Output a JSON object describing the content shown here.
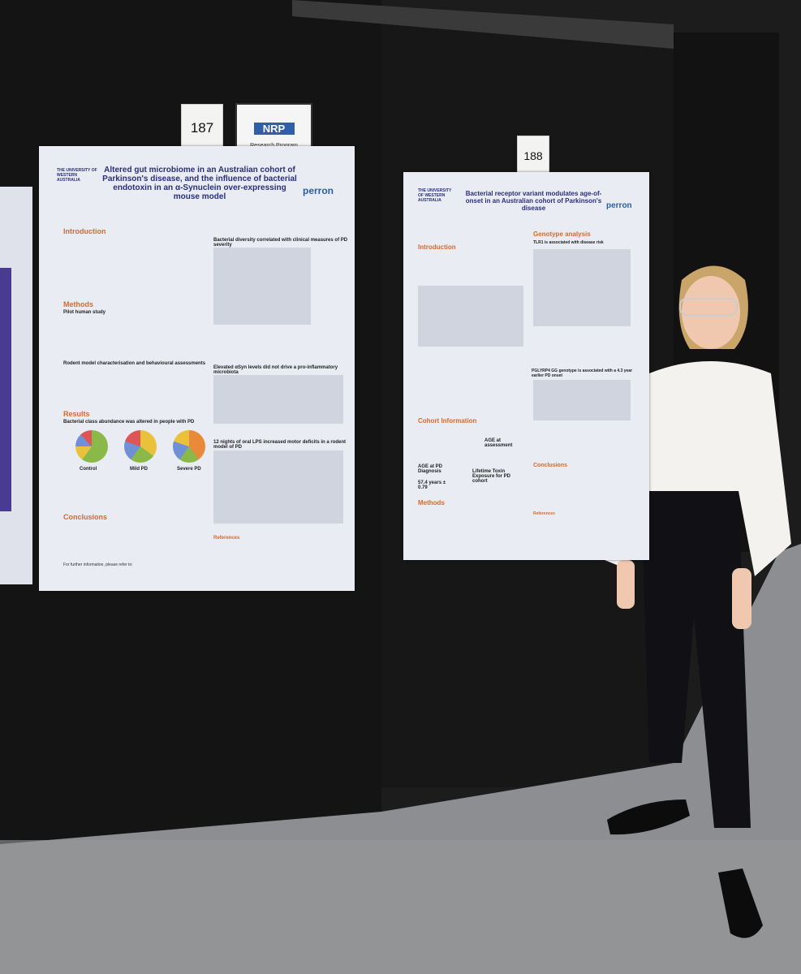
{
  "signs": [
    "187",
    "188"
  ],
  "nrp_card": {
    "logo": "NRP",
    "caption": "Research Program"
  },
  "posters": [
    {
      "university": "THE UNIVERSITY OF WESTERN AUSTRALIA",
      "brand": "perron",
      "title": "Altered gut microbiome in an Australian cohort of Parkinson's disease, and the influence of bacterial endotoxin in an α-Synuclein over-expressing mouse model",
      "left_headings": [
        "Introduction",
        "Methods",
        "Pilot human study",
        "Rodent model characterisation and behavioural assessments",
        "Results",
        "Bacterial class abundance was altered in people with PD"
      ],
      "pie_labels": [
        "Control",
        "Mild PD",
        "Severe PD"
      ],
      "right_headings": [
        "Bacterial diversity correlated with clinical measures of PD severity",
        "Elevated αSyn levels did not drive a pro-inflammatory microbiota",
        "12 nights of oral LPS increased motor deficits in a rodent model of PD"
      ],
      "bottom_headings": [
        "Conclusions",
        "References"
      ],
      "footer": "For further information, please refer to:"
    },
    {
      "university": "THE UNIVERSITY OF WESTERN AUSTRALIA",
      "brand": "perron",
      "title": "Bacterial receptor variant modulates age-of-onset in an Australian cohort of Parkinson's disease",
      "left_headings": [
        "Introduction",
        "Cohort Information",
        "Methods"
      ],
      "cohort": [
        "AGE at assessment",
        "AGE at PD Diagnosis",
        "57.4 years ± 0.79",
        "Lifetime Toxin Exposure for PD cohort"
      ],
      "right_headings": [
        "Genotype analysis",
        "TLR1 is associated with disease risk",
        "PGLYRP4 GG genotype is associated with a 4.3 year earlier PD onset",
        "Conclusions",
        "References"
      ]
    }
  ]
}
